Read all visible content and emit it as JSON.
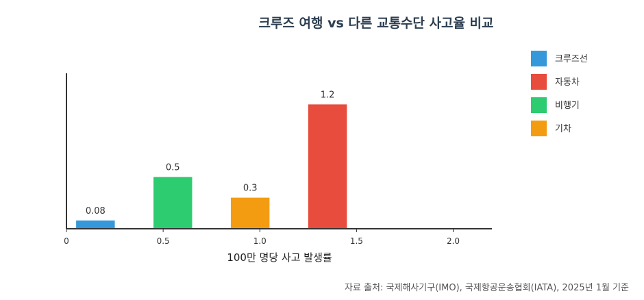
{
  "chart_data": {
    "type": "bar",
    "title": "크루즈 여행 vs 다른 교통수단 사고율 비교",
    "xlabel": "100만 명당 사고 발생률",
    "ylabel": "",
    "x_axis_ticks": [
      "0",
      "0.5",
      "1.0",
      "1.5",
      "2.0"
    ],
    "xlim": [
      0,
      2.2
    ],
    "ylim": [
      0,
      1.5
    ],
    "grid": false,
    "legend_position": "right",
    "series": [
      {
        "name": "크루즈선",
        "x": 0.15,
        "value": 0.08,
        "label": "0.08",
        "color": "#3498db"
      },
      {
        "name": "비행기",
        "x": 0.55,
        "value": 0.5,
        "label": "0.5",
        "color": "#2ecc71"
      },
      {
        "name": "기차",
        "x": 0.95,
        "value": 0.3,
        "label": "0.3",
        "color": "#f39c12"
      },
      {
        "name": "자동차",
        "x": 1.35,
        "value": 1.2,
        "label": "1.2",
        "color": "#e74c3c"
      }
    ],
    "legend_order": [
      "크루즈선",
      "자동차",
      "비행기",
      "기차"
    ]
  },
  "source_note": "자료 출처: 국제해사기구(IMO), 국제항공운송협회(IATA), 2025년 1월 기준"
}
